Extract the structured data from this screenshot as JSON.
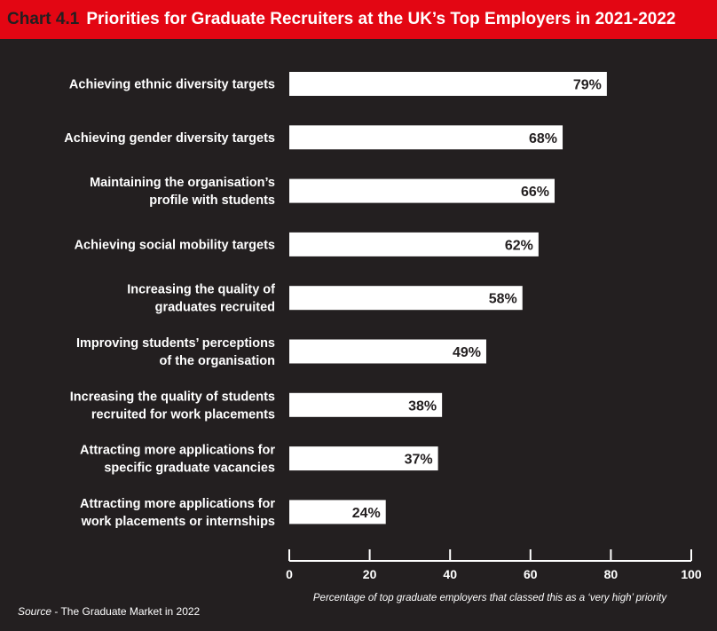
{
  "title": {
    "number": "Chart 4.1",
    "text": "Priorities for Graduate Recruiters at the UK’s Top Employers in 2021-2022"
  },
  "chart_data": {
    "type": "bar",
    "orientation": "horizontal",
    "categories": [
      [
        "Achieving ethnic diversity targets"
      ],
      [
        "Achieving gender diversity targets"
      ],
      [
        "Maintaining the organisation’s",
        "profile with students"
      ],
      [
        "Achieving social mobility targets"
      ],
      [
        "Increasing the quality of",
        "graduates recruited"
      ],
      [
        "Improving students’ perceptions",
        "of the organisation"
      ],
      [
        "Increasing the quality of students",
        "recruited for work placements"
      ],
      [
        "Attracting more applications for",
        "specific graduate vacancies"
      ],
      [
        "Attracting more applications for",
        "work placements or internships"
      ]
    ],
    "values": [
      79,
      68,
      66,
      62,
      58,
      49,
      38,
      37,
      24
    ],
    "value_labels": [
      "79%",
      "68%",
      "66%",
      "62%",
      "58%",
      "49%",
      "38%",
      "37%",
      "24%"
    ],
    "xlim": [
      0,
      100
    ],
    "xticks": [
      0,
      20,
      40,
      60,
      80,
      100
    ],
    "xlabel": "Percentage of top graduate employers that classed this as a ‘very high’ priority",
    "grid": false
  },
  "source": {
    "label": "Source",
    "text": " - The Graduate Market in 2022"
  },
  "colors": {
    "background": "#231f20",
    "title_bar": "#e30613",
    "bar": "#ffffff",
    "text": "#ffffff",
    "value_text": "#231f20"
  }
}
